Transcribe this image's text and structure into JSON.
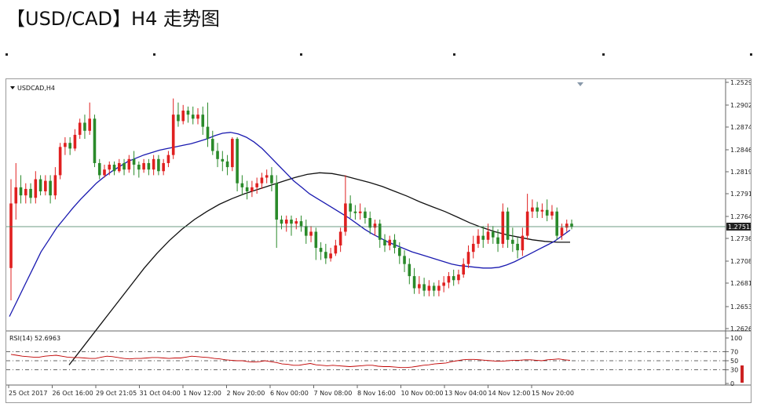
{
  "page": {
    "title": "【USD/CAD】H4 走势图"
  },
  "chart_data": {
    "type": "candlestick",
    "symbol_label": "USDCAD,H4",
    "colors": {
      "up": "#e02020",
      "down": "#2a8a2a",
      "ma_fast": "#1a1ab0",
      "ma_slow": "#111111",
      "rsi": "#c00000",
      "price_line": "#3c7a5a",
      "price_tag_bg": "#222222"
    },
    "price_axis": {
      "ylim": [
        1.2626,
        1.25295
      ],
      "ticks": [
        "1.25295",
        "1.29020",
        "1.28740",
        "1.28465",
        "1.28190",
        "1.27915",
        "1.27640",
        "1.27365",
        "1.27085",
        "1.26810",
        "1.26535",
        "1.26260"
      ],
      "current_price": "1.27513",
      "current_value": 1.27513
    },
    "rsi": {
      "label": "RSI(14) 52.6963",
      "levels": [
        "100",
        "70",
        "50",
        "30",
        "0"
      ],
      "level_values": [
        100,
        70,
        50,
        30,
        0
      ],
      "dashed_levels": [
        70,
        50,
        30
      ],
      "values": [
        64,
        62,
        60,
        59,
        58,
        58,
        60,
        61,
        62,
        60,
        58,
        57,
        57,
        56,
        55,
        55,
        58,
        60,
        59,
        57,
        55,
        54,
        55,
        55,
        56,
        57,
        57,
        56,
        55,
        56,
        56,
        58,
        60,
        59,
        58,
        57,
        55,
        54,
        52,
        51,
        50,
        50,
        48,
        47,
        48,
        50,
        48,
        46,
        43,
        42,
        40,
        40,
        42,
        44,
        41,
        40,
        39,
        40,
        39,
        38,
        37,
        38,
        39,
        40,
        40,
        38,
        37,
        37,
        36,
        35,
        35,
        36,
        38,
        40,
        41,
        43,
        44,
        45,
        48,
        50,
        52,
        53,
        53,
        52,
        51,
        50,
        49,
        49,
        50,
        51,
        51,
        52,
        52,
        51,
        50,
        52,
        53,
        54,
        52,
        51
      ]
    },
    "x_ticks": [
      "25 Oct 2017",
      "26 Oct 16:00",
      "29 Oct 21:05",
      "31 Oct 04:00",
      "1 Nov 12:00",
      "2 Nov 20:00",
      "6 Nov 00:00",
      "7 Nov 08:00",
      "8 Nov 16:00",
      "10 Nov 00:00",
      "13 Nov 04:00",
      "14 Nov 12:00",
      "15 Nov 20:00"
    ],
    "candles": [
      [
        1.27,
        1.278,
        1.266,
        1.281
      ],
      [
        1.278,
        1.28,
        1.276,
        1.283
      ],
      [
        1.28,
        1.279,
        1.278,
        1.2815
      ],
      [
        1.279,
        1.2798,
        1.278,
        1.2805
      ],
      [
        1.2798,
        1.2787,
        1.278,
        1.2805
      ],
      [
        1.2787,
        1.281,
        1.278,
        1.282
      ],
      [
        1.281,
        1.2795,
        1.279,
        1.2815
      ],
      [
        1.2795,
        1.2808,
        1.279,
        1.2815
      ],
      [
        1.2808,
        1.279,
        1.278,
        1.2815
      ],
      [
        1.279,
        1.2815,
        1.2785,
        1.2825
      ],
      [
        1.2815,
        1.285,
        1.281,
        1.2855
      ],
      [
        1.285,
        1.2855,
        1.284,
        1.2862
      ],
      [
        1.2855,
        1.2848,
        1.284,
        1.2862
      ],
      [
        1.2848,
        1.2865,
        1.2845,
        1.2872
      ],
      [
        1.2865,
        1.288,
        1.286,
        1.2885
      ],
      [
        1.288,
        1.287,
        1.286,
        1.289
      ],
      [
        1.287,
        1.2885,
        1.2865,
        1.2905
      ],
      [
        1.2885,
        1.283,
        1.2825,
        1.289
      ],
      [
        1.283,
        1.2815,
        1.281,
        1.2835
      ],
      [
        1.2815,
        1.2822,
        1.2812,
        1.2828
      ],
      [
        1.2822,
        1.2828,
        1.2815,
        1.2832
      ],
      [
        1.2828,
        1.282,
        1.2815,
        1.2832
      ],
      [
        1.282,
        1.283,
        1.2818,
        1.2835
      ],
      [
        1.283,
        1.2822,
        1.2815,
        1.2835
      ],
      [
        1.2822,
        1.2835,
        1.2818,
        1.284
      ],
      [
        1.2835,
        1.2828,
        1.2815,
        1.2845
      ],
      [
        1.2828,
        1.2822,
        1.2812,
        1.2832
      ],
      [
        1.2822,
        1.283,
        1.2818,
        1.2835
      ],
      [
        1.283,
        1.2822,
        1.2815,
        1.2835
      ],
      [
        1.2822,
        1.2835,
        1.2815,
        1.284
      ],
      [
        1.2835,
        1.282,
        1.2815,
        1.284
      ],
      [
        1.282,
        1.283,
        1.2815,
        1.2835
      ],
      [
        1.283,
        1.284,
        1.2825,
        1.2845
      ],
      [
        1.284,
        1.289,
        1.2835,
        1.291
      ],
      [
        1.289,
        1.2882,
        1.2875,
        1.2905
      ],
      [
        1.2882,
        1.2895,
        1.2878,
        1.2902
      ],
      [
        1.2895,
        1.289,
        1.288,
        1.29
      ],
      [
        1.289,
        1.2885,
        1.2878,
        1.29
      ],
      [
        1.2885,
        1.289,
        1.2878,
        1.2898
      ],
      [
        1.289,
        1.2875,
        1.2865,
        1.29
      ],
      [
        1.2875,
        1.286,
        1.285,
        1.2905
      ],
      [
        1.286,
        1.2845,
        1.284,
        1.287
      ],
      [
        1.2845,
        1.2835,
        1.2825,
        1.2855
      ],
      [
        1.2835,
        1.2832,
        1.282,
        1.2845
      ],
      [
        1.2832,
        1.2825,
        1.2815,
        1.284
      ],
      [
        1.2825,
        1.286,
        1.282,
        1.2862
      ],
      [
        1.286,
        1.2805,
        1.2795,
        1.2862
      ],
      [
        1.2805,
        1.28,
        1.279,
        1.2815
      ],
      [
        1.28,
        1.2795,
        1.2785,
        1.2808
      ],
      [
        1.2795,
        1.28,
        1.2788,
        1.2808
      ],
      [
        1.28,
        1.2805,
        1.2792,
        1.2812
      ],
      [
        1.2805,
        1.2812,
        1.2798,
        1.2818
      ],
      [
        1.2812,
        1.2815,
        1.2805,
        1.2822
      ],
      [
        1.2815,
        1.2805,
        1.2795,
        1.2825
      ],
      [
        1.2805,
        1.276,
        1.2725,
        1.2815
      ],
      [
        1.276,
        1.2755,
        1.2748,
        1.2765
      ],
      [
        1.2755,
        1.276,
        1.2745,
        1.2765
      ],
      [
        1.276,
        1.2755,
        1.274,
        1.2765
      ],
      [
        1.2755,
        1.2758,
        1.2748,
        1.2762
      ],
      [
        1.2758,
        1.2752,
        1.2745,
        1.2765
      ],
      [
        1.2752,
        1.274,
        1.273,
        1.276
      ],
      [
        1.274,
        1.2745,
        1.2732,
        1.2752
      ],
      [
        1.2745,
        1.2725,
        1.271,
        1.275
      ],
      [
        1.2725,
        1.272,
        1.271,
        1.2732
      ],
      [
        1.272,
        1.2712,
        1.2705,
        1.273
      ],
      [
        1.2712,
        1.2718,
        1.2708,
        1.2725
      ],
      [
        1.2718,
        1.2728,
        1.2715,
        1.2735
      ],
      [
        1.2728,
        1.2745,
        1.272,
        1.275
      ],
      [
        1.2745,
        1.278,
        1.274,
        1.2815
      ],
      [
        1.278,
        1.277,
        1.2762,
        1.279
      ],
      [
        1.277,
        1.2768,
        1.276,
        1.2778
      ],
      [
        1.2768,
        1.277,
        1.276,
        1.278
      ],
      [
        1.277,
        1.2762,
        1.2755,
        1.2775
      ],
      [
        1.2762,
        1.275,
        1.2742,
        1.277
      ],
      [
        1.275,
        1.2755,
        1.274,
        1.276
      ],
      [
        1.2755,
        1.2735,
        1.2725,
        1.276
      ],
      [
        1.2735,
        1.2728,
        1.272,
        1.2742
      ],
      [
        1.2728,
        1.2735,
        1.2722,
        1.274
      ],
      [
        1.2735,
        1.2725,
        1.2718,
        1.2742
      ],
      [
        1.2725,
        1.2715,
        1.2705,
        1.2732
      ],
      [
        1.2715,
        1.2705,
        1.2695,
        1.2722
      ],
      [
        1.2705,
        1.269,
        1.268,
        1.2712
      ],
      [
        1.269,
        1.2675,
        1.2668,
        1.27
      ],
      [
        1.2675,
        1.268,
        1.2668,
        1.269
      ],
      [
        1.268,
        1.2672,
        1.2665,
        1.2688
      ],
      [
        1.2672,
        1.2678,
        1.2665,
        1.2685
      ],
      [
        1.2678,
        1.2672,
        1.2665,
        1.2682
      ],
      [
        1.2672,
        1.2678,
        1.2665,
        1.2685
      ],
      [
        1.2678,
        1.2682,
        1.267,
        1.269
      ],
      [
        1.2682,
        1.269,
        1.2675,
        1.2695
      ],
      [
        1.269,
        1.2685,
        1.2678,
        1.2698
      ],
      [
        1.2685,
        1.2692,
        1.268,
        1.2698
      ],
      [
        1.2692,
        1.2705,
        1.2688,
        1.2712
      ],
      [
        1.2705,
        1.272,
        1.27,
        1.2728
      ],
      [
        1.272,
        1.273,
        1.2712,
        1.274
      ],
      [
        1.273,
        1.274,
        1.2725,
        1.2748
      ],
      [
        1.274,
        1.2735,
        1.2725,
        1.2752
      ],
      [
        1.2735,
        1.2745,
        1.273,
        1.2755
      ],
      [
        1.2745,
        1.2738,
        1.273,
        1.2752
      ],
      [
        1.2738,
        1.273,
        1.272,
        1.2748
      ],
      [
        1.273,
        1.277,
        1.2725,
        1.278
      ],
      [
        1.277,
        1.2735,
        1.2725,
        1.2775
      ],
      [
        1.2735,
        1.273,
        1.272,
        1.275
      ],
      [
        1.273,
        1.2722,
        1.2712,
        1.2738
      ],
      [
        1.2722,
        1.274,
        1.2715,
        1.275
      ],
      [
        1.274,
        1.277,
        1.2735,
        1.2792
      ],
      [
        1.277,
        1.2775,
        1.2762,
        1.2785
      ],
      [
        1.2775,
        1.277,
        1.2762,
        1.2782
      ],
      [
        1.277,
        1.2772,
        1.2762,
        1.278
      ],
      [
        1.2772,
        1.2765,
        1.2758,
        1.2785
      ],
      [
        1.2765,
        1.277,
        1.276,
        1.2778
      ],
      [
        1.277,
        1.274,
        1.2735,
        1.2775
      ],
      [
        1.274,
        1.275,
        1.2735,
        1.2755
      ],
      [
        1.275,
        1.2755,
        1.2745,
        1.276
      ],
      [
        1.2755,
        1.2751,
        1.2748,
        1.276
      ]
    ],
    "ma_fast": [
      1.264,
      1.266,
      1.268,
      1.27,
      1.272,
      1.2735,
      1.275,
      1.2762,
      1.2774,
      1.2785,
      1.2795,
      1.2805,
      1.2813,
      1.282,
      1.2826,
      1.2832,
      1.2836,
      1.284,
      1.2843,
      1.2846,
      1.2848,
      1.285,
      1.2852,
      1.2854,
      1.2857,
      1.286,
      1.2864,
      1.2867,
      1.2868,
      1.2866,
      1.2862,
      1.2856,
      1.2848,
      1.2838,
      1.2828,
      1.2818,
      1.2808,
      1.28,
      1.2792,
      1.2786,
      1.278,
      1.2774,
      1.2768,
      1.2762,
      1.2755,
      1.2748,
      1.2742,
      1.2737,
      1.2732,
      1.2728,
      1.2724,
      1.272,
      1.2717,
      1.2714,
      1.2711,
      1.2708,
      1.2705,
      1.2703,
      1.2702,
      1.2701,
      1.27,
      1.27,
      1.2701,
      1.2704,
      1.2708,
      1.2713,
      1.2718,
      1.2723,
      1.2728,
      1.2733,
      1.274,
      1.2747
    ],
    "ma_slow": [
      1.258,
      1.26,
      1.262,
      1.264,
      1.266,
      1.268,
      1.27,
      1.2718,
      1.2734,
      1.2748,
      1.276,
      1.277,
      1.2779,
      1.2786,
      1.2792,
      1.2797,
      1.2802,
      1.2807,
      1.2812,
      1.2816,
      1.2818,
      1.2817,
      1.2814,
      1.281,
      1.2806,
      1.2801,
      1.2795,
      1.2789,
      1.2782,
      1.2776,
      1.277,
      1.2763,
      1.2756,
      1.275,
      1.2745,
      1.2741,
      1.2738,
      1.2735,
      1.2733,
      1.2732,
      1.2732
    ]
  }
}
